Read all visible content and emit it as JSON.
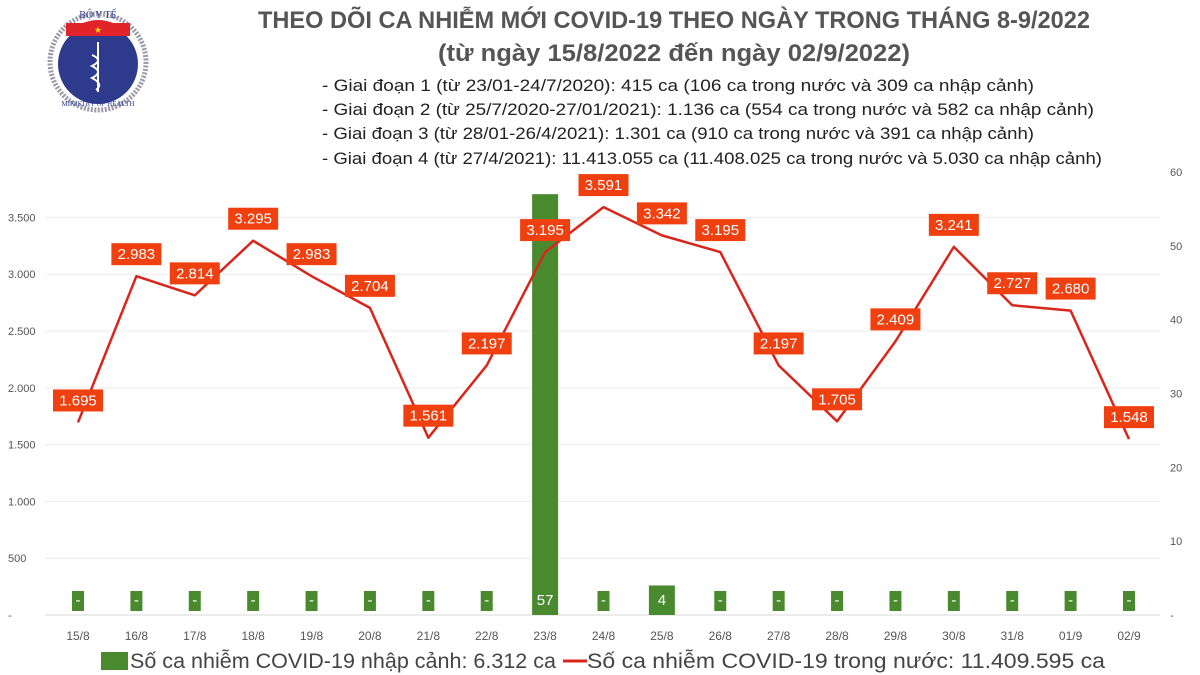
{
  "logo": {
    "top_text": "BỘ Y TẾ",
    "bottom_text": "MINISTRY OF HEALTH"
  },
  "title": "THEO DÕI CA NHIỄM MỚI COVID-19 THEO NGÀY TRONG THÁNG 8-9/2022",
  "subtitle": "(từ ngày 15/8/2022 đến ngày 02/9/2022)",
  "notes": [
    "- Giai đoạn 1 (từ 23/01-24/7/2020): 415 ca (106 ca trong nước và 309 ca nhập cảnh)",
    "- Giai đoạn 2 (từ 25/7/2020-27/01/2021): 1.136 ca (554 ca trong nước và 582 ca nhập cảnh)",
    "- Giai đoạn 3 (từ 28/01-26/4/2021): 1.301 ca (910 ca trong nước và 391 ca nhập cảnh)",
    "- Giai đoạn 4 (từ 27/4/2021): 11.413.055 ca (11.408.025 ca trong nước và 5.030 ca nhập cảnh)"
  ],
  "chart_data": {
    "type": "bar+line",
    "categories": [
      "15/8",
      "16/8",
      "17/8",
      "18/8",
      "19/8",
      "20/8",
      "21/8",
      "22/8",
      "23/8",
      "24/8",
      "25/8",
      "26/8",
      "27/8",
      "28/8",
      "29/8",
      "30/8",
      "31/8",
      "01/9",
      "02/9"
    ],
    "series": [
      {
        "name": "Số ca nhiễm COVID-19 nhập cảnh: 6.312 ca",
        "type": "bar",
        "axis": "right",
        "color": "#4a8a2f",
        "values": [
          0,
          0,
          0,
          0,
          0,
          0,
          0,
          0,
          57,
          0,
          4,
          0,
          0,
          0,
          0,
          0,
          0,
          0,
          0
        ],
        "labels": [
          "-",
          "-",
          "-",
          "-",
          "-",
          "-",
          "-",
          "-",
          "57",
          "-",
          "4",
          "-",
          "-",
          "-",
          "-",
          "-",
          "-",
          "-",
          "-"
        ]
      },
      {
        "name": "Số ca nhiễm COVID-19 trong nước: 11.409.595 ca",
        "type": "line",
        "axis": "left",
        "color": "#d9261c",
        "values": [
          1695,
          2983,
          2814,
          3295,
          2983,
          2704,
          1561,
          2197,
          3195,
          3591,
          3342,
          3195,
          2197,
          1705,
          2409,
          3241,
          2727,
          2680,
          1548
        ],
        "labels": [
          "1.695",
          "2.983",
          "2.814",
          "3.295",
          "2.983",
          "2.704",
          "1.561",
          "2.197",
          "3.195",
          "3.591",
          "3.342",
          "3.195",
          "2.197",
          "1.705",
          "2.409",
          "3.241",
          "2.727",
          "2.680",
          "1.548"
        ]
      }
    ],
    "left_axis": {
      "ticks": [
        0,
        500,
        1000,
        1500,
        2000,
        2500,
        3000,
        3500
      ],
      "tick_labels": [
        "-",
        "500",
        "1.000",
        "1.500",
        "2.000",
        "2.500",
        "3.000",
        "3.500"
      ],
      "ylim": [
        0,
        3900
      ]
    },
    "right_axis": {
      "ticks": [
        0,
        10,
        20,
        30,
        40,
        50,
        60
      ],
      "tick_labels": [
        "-",
        "10",
        "20",
        "30",
        "40",
        "50",
        "60"
      ],
      "ylim": [
        0,
        60
      ]
    },
    "label_color": "#f0400f",
    "grid": true,
    "legend_placement": "bottom"
  }
}
